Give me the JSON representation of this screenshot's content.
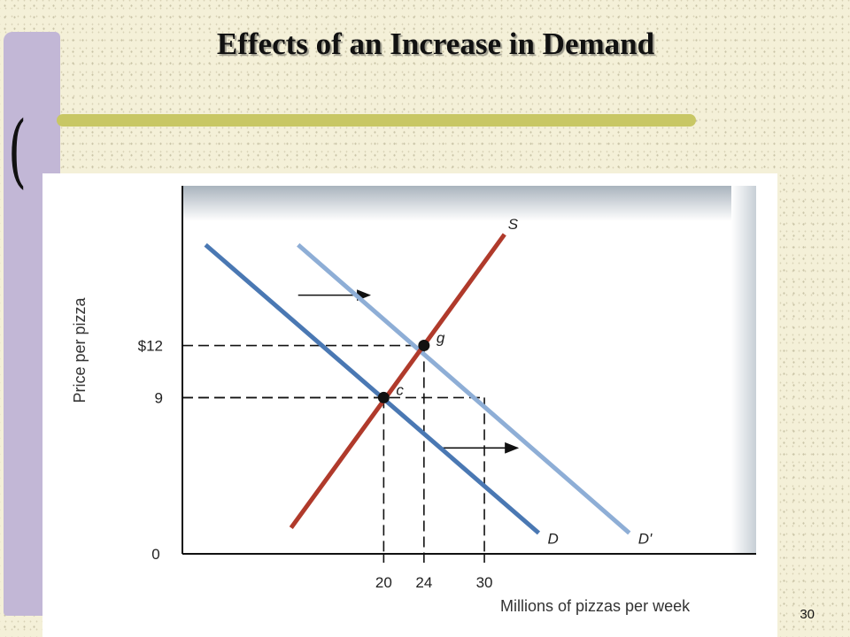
{
  "slide": {
    "title": "Effects of an Increase in Demand",
    "number": "30"
  },
  "colors": {
    "background": "#f4f0d8",
    "sidebar": "#c2b7d6",
    "rule": "#c8c764",
    "supply": "#b03a2b",
    "demand": "#4a78b3",
    "demand_new": "#8eaed6"
  },
  "chart_data": {
    "type": "line",
    "xlabel": "Millions of pizzas per week",
    "ylabel": "Price per pizza",
    "origin_label": "0",
    "x_ticks": [
      {
        "value": 20,
        "label": "20"
      },
      {
        "value": 24,
        "label": "24"
      },
      {
        "value": 30,
        "label": "30"
      }
    ],
    "y_ticks": [
      {
        "value": 12,
        "label": "$12"
      },
      {
        "value": 9,
        "label": "9"
      }
    ],
    "series": [
      {
        "name": "S",
        "color": "#b03a2b",
        "x": [
          10.8,
          32
        ],
        "y": [
          1.5,
          18.4
        ]
      },
      {
        "name": "D",
        "color": "#4a78b3",
        "x": [
          2.3,
          35.4
        ],
        "y": [
          17.8,
          1.2
        ]
      },
      {
        "name": "D'",
        "color": "#8eaed6",
        "x": [
          11.5,
          44.4
        ],
        "y": [
          17.8,
          1.2
        ]
      }
    ],
    "points": [
      {
        "label": "c",
        "x": 20,
        "y": 9
      },
      {
        "label": "g",
        "x": 24,
        "y": 12
      }
    ],
    "guides": [
      {
        "x": 20,
        "y": 9
      },
      {
        "x": 24,
        "y": 12
      },
      {
        "x": 30,
        "y": 9
      }
    ],
    "shift_arrows": [
      {
        "x1": 11.5,
        "x2": 18.6,
        "y": 14.9
      },
      {
        "x1": 25.9,
        "x2": 33.3,
        "y": 6.1
      }
    ],
    "xlim": [
      0,
      57
    ],
    "ylim": [
      0,
      21.2
    ],
    "grid": false,
    "legend": "none"
  }
}
